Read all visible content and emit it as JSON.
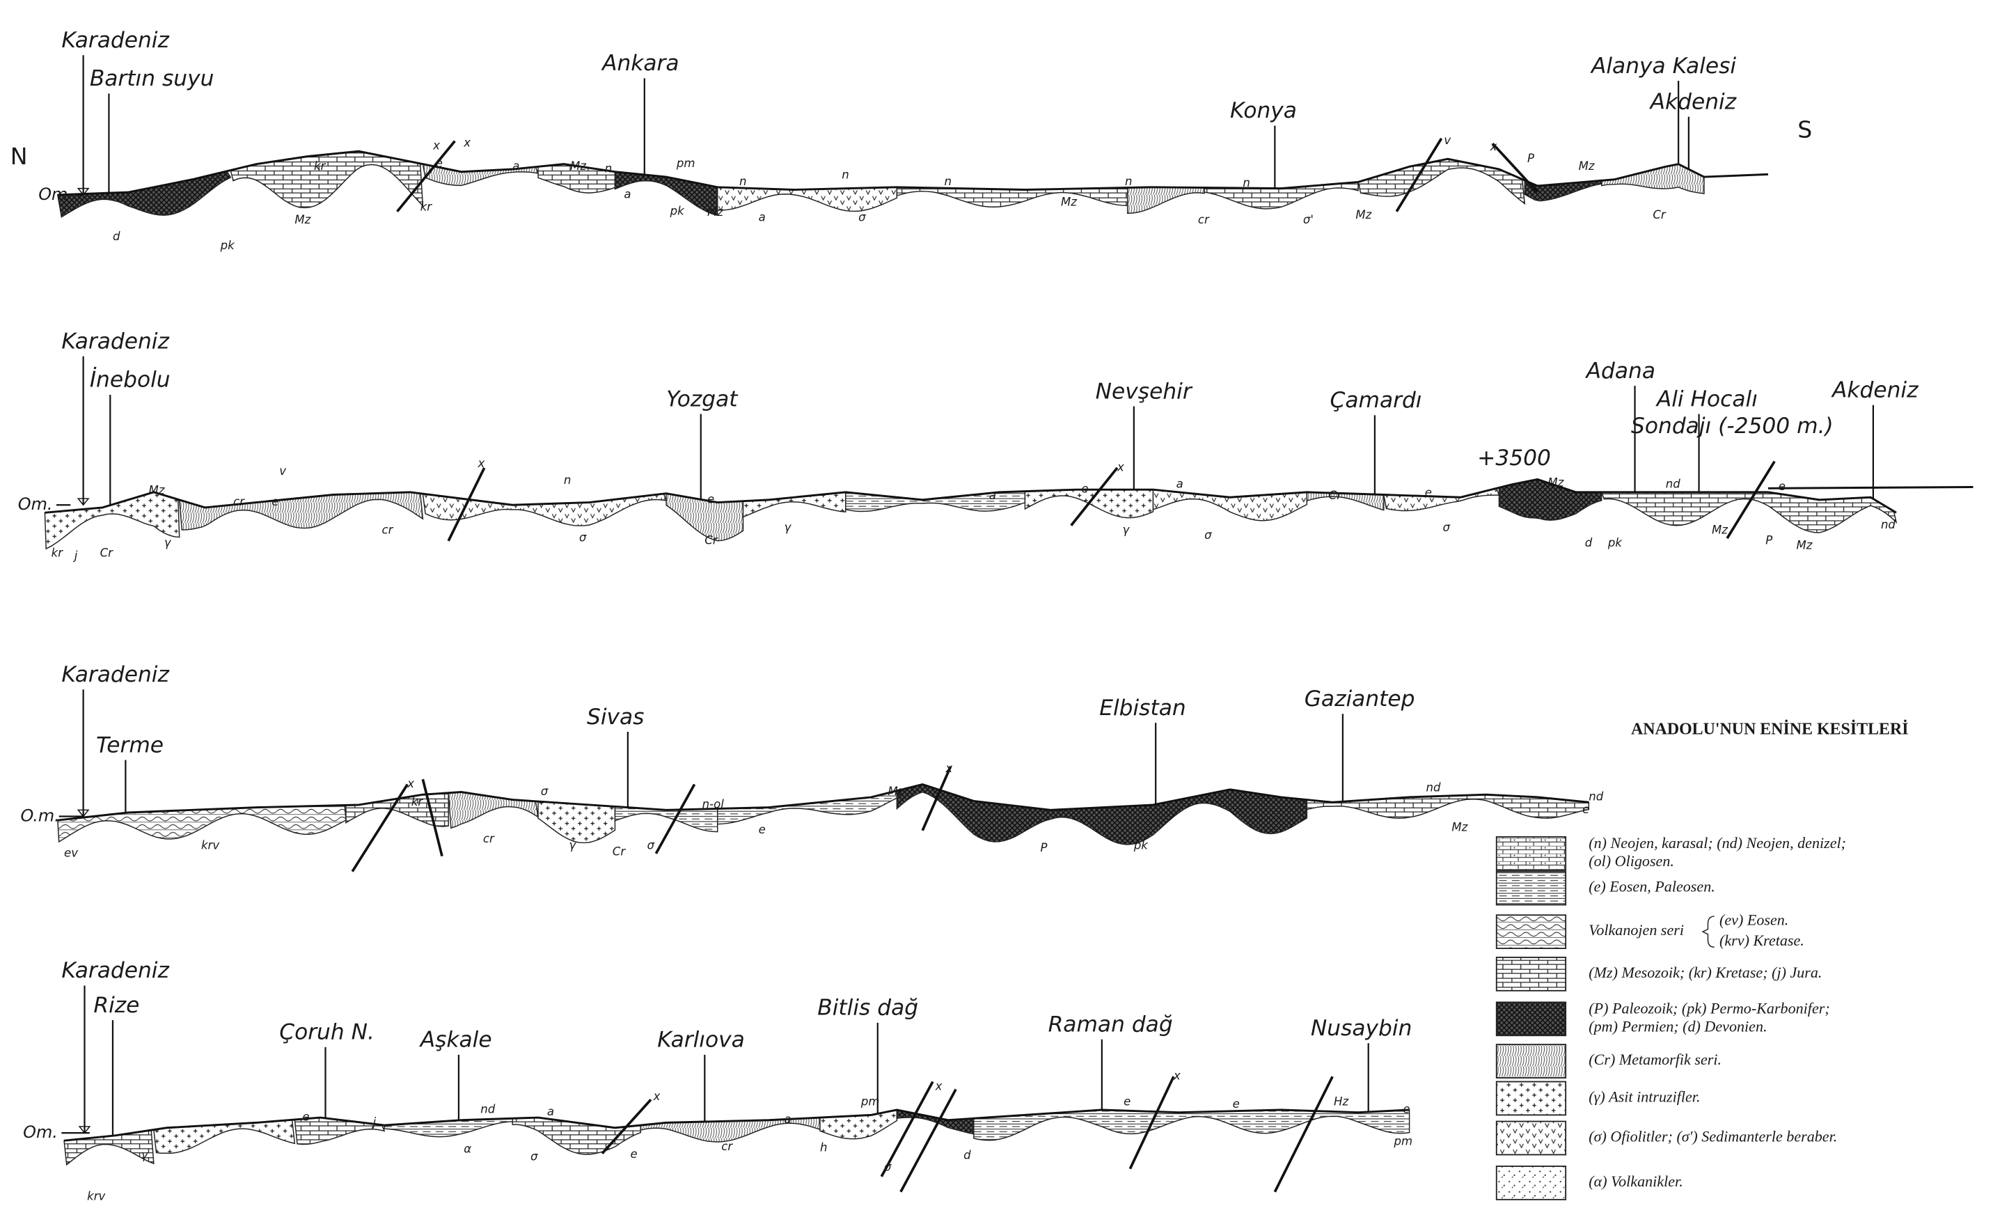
{
  "title": "ANADOLU'NUN ENİNE KESİTLERİ",
  "directions": {
    "north": "N",
    "south": "S"
  },
  "sections": [
    {
      "sea_level": "Om",
      "places": [
        "Karadeniz",
        "Bartın suyu",
        "Ankara",
        "Konya",
        "Alanya Kalesi",
        "Akdeniz"
      ],
      "units": [
        "d",
        "pk",
        "kr",
        "Mz",
        "kr",
        "e",
        "x",
        "x",
        "a",
        "Mz",
        "n",
        "pm",
        "a",
        "pk",
        "Mz",
        "n",
        "a",
        "n",
        "σ",
        "n",
        "Mz",
        "n",
        "cr",
        "n",
        "σ'",
        "Mz",
        "v",
        "x",
        "P",
        "Mz",
        "Cr"
      ]
    },
    {
      "sea_level": "Om.",
      "places": [
        "Karadeniz",
        "İnebolu",
        "Yozgat",
        "Nevşehir",
        "Çamardı",
        "+3500",
        "Adana",
        "Ali Hocalı",
        "Sondajı (-2500 m.)",
        "Akdeniz"
      ],
      "units": [
        "kr",
        "j",
        "Cr",
        "Mz",
        "γ",
        "cr",
        "e",
        "v",
        "cr",
        "x",
        "n",
        "σ",
        "e",
        "Cr",
        "γ",
        "a",
        "e",
        "x",
        "γ",
        "a",
        "σ",
        "Cr",
        "e",
        "σ",
        "Mz",
        "nd",
        "d",
        "pk",
        "Mz",
        "e",
        "P",
        "Mz",
        "nd"
      ]
    },
    {
      "sea_level": "O.m.",
      "places": [
        "Karadeniz",
        "Terme",
        "Sivas",
        "Elbistan",
        "Gaziantep"
      ],
      "units": [
        "ev",
        "krv",
        "x",
        "kr",
        "σ",
        "cr",
        "γ",
        "Cr",
        "σ",
        "n-ol",
        "e",
        "Mz",
        "x",
        "P",
        "pk",
        "nd",
        "Mz",
        "nd",
        "e"
      ]
    },
    {
      "sea_level": "Om.",
      "places": [
        "Karadeniz",
        "Rize",
        "Çoruh N.",
        "Aşkale",
        "Karlıova",
        "Bitlis dağ",
        "Raman dağ",
        "Nusaybin"
      ],
      "units": [
        "krv",
        "γ",
        "e",
        "j",
        "nd",
        "α",
        "a",
        "σ",
        "x",
        "e",
        "cr",
        "a",
        "pm",
        "h",
        "σ",
        "d",
        "x",
        "e",
        "x",
        "e",
        "Hz",
        "pm",
        "e"
      ]
    }
  ],
  "legend": [
    {
      "lines": [
        "(n) Neojen, karasal; (nd) Neojen, denizel;",
        "(ol) Oligosen."
      ]
    },
    {
      "lines": [
        "(e) Eosen, Paleosen."
      ]
    },
    {
      "lines": [
        "Volkanojen seri",
        "(ev) Eosen.",
        "(krv) Kretase."
      ]
    },
    {
      "lines": [
        "(Mz) Mesozoik; (kr) Kretase; (j) Jura."
      ]
    },
    {
      "lines": [
        "(P) Paleozoik; (pk) Permo-Karbonifer;",
        "(pm) Permien; (d) Devonien."
      ]
    },
    {
      "lines": [
        "(Cr) Metamorfik seri."
      ]
    },
    {
      "lines": [
        "(γ) Asit intruzifler."
      ]
    },
    {
      "lines": [
        "(σ) Ofiolitler; (σ') Sedimanterle beraber."
      ]
    },
    {
      "lines": [
        "(α) Volkanikler."
      ]
    }
  ]
}
